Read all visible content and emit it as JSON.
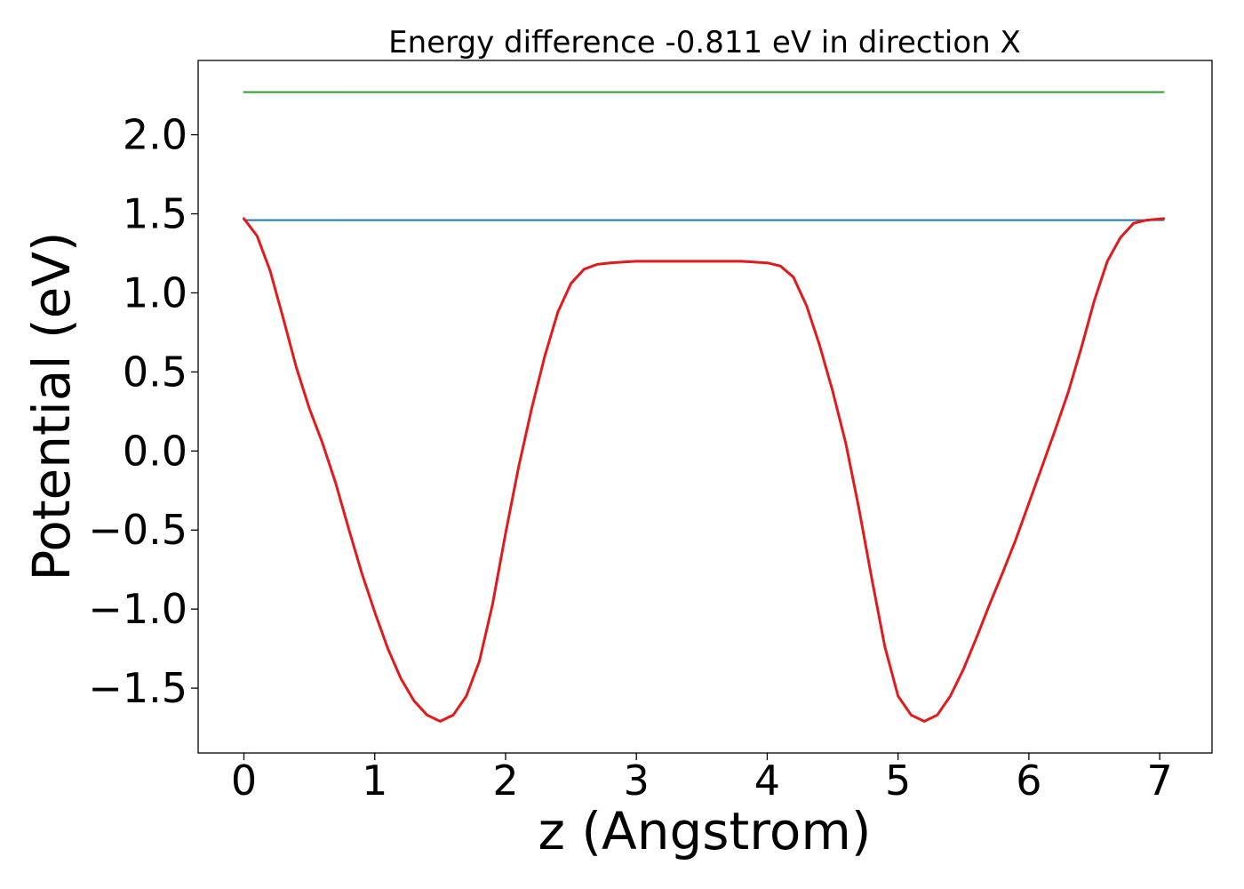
{
  "chart_data": {
    "type": "line",
    "title": "Energy difference -0.811 eV in direction X",
    "xlabel": "z (Angstrom)",
    "ylabel": "Potential (eV)",
    "xlim": [
      -0.35,
      7.4
    ],
    "ylim": [
      -1.91,
      2.47
    ],
    "xticks": [
      0,
      1,
      2,
      3,
      4,
      5,
      6,
      7
    ],
    "xtick_labels": [
      "0",
      "1",
      "2",
      "3",
      "4",
      "5",
      "6",
      "7"
    ],
    "yticks": [
      -1.5,
      -1.0,
      -0.5,
      0.0,
      0.5,
      1.0,
      1.5,
      2.0
    ],
    "ytick_labels": [
      "−1.5",
      "−1.0",
      "−0.5",
      "0.0",
      "0.5",
      "1.0",
      "1.5",
      "2.0"
    ],
    "grid": false,
    "series": [
      {
        "color": "#2ca02c",
        "x": [
          0,
          7.03
        ],
        "y": [
          2.27,
          2.27
        ]
      },
      {
        "color": "#1f77b4",
        "x": [
          0,
          7.03
        ],
        "y": [
          1.46,
          1.46
        ]
      },
      {
        "color": "#e31a1c",
        "x": [
          0,
          0.1,
          0.2,
          0.3,
          0.4,
          0.5,
          0.6,
          0.7,
          0.8,
          0.9,
          1.0,
          1.1,
          1.2,
          1.3,
          1.4,
          1.5,
          1.6,
          1.7,
          1.8,
          1.9,
          2.0,
          2.1,
          2.2,
          2.3,
          2.4,
          2.5,
          2.6,
          2.7,
          2.8,
          2.9,
          3.0,
          3.2,
          3.5,
          3.8,
          4.0,
          4.1,
          4.2,
          4.3,
          4.4,
          4.5,
          4.6,
          4.7,
          4.8,
          4.9,
          5.0,
          5.1,
          5.2,
          5.3,
          5.4,
          5.5,
          5.6,
          5.7,
          5.8,
          5.9,
          6.0,
          6.1,
          6.2,
          6.3,
          6.4,
          6.5,
          6.6,
          6.7,
          6.8,
          6.9,
          7.03
        ],
        "y": [
          1.47,
          1.36,
          1.14,
          0.84,
          0.53,
          0.27,
          0.05,
          -0.2,
          -0.49,
          -0.77,
          -1.02,
          -1.25,
          -1.44,
          -1.58,
          -1.67,
          -1.71,
          -1.67,
          -1.55,
          -1.33,
          -0.97,
          -0.52,
          -0.1,
          0.27,
          0.6,
          0.88,
          1.06,
          1.15,
          1.18,
          1.19,
          1.195,
          1.2,
          1.2,
          1.2,
          1.2,
          1.19,
          1.17,
          1.1,
          0.92,
          0.67,
          0.38,
          0.05,
          -0.36,
          -0.81,
          -1.24,
          -1.55,
          -1.67,
          -1.71,
          -1.67,
          -1.55,
          -1.38,
          -1.18,
          -0.97,
          -0.77,
          -0.56,
          -0.33,
          -0.1,
          0.13,
          0.37,
          0.65,
          0.95,
          1.2,
          1.35,
          1.44,
          1.46,
          1.47
        ]
      }
    ]
  }
}
